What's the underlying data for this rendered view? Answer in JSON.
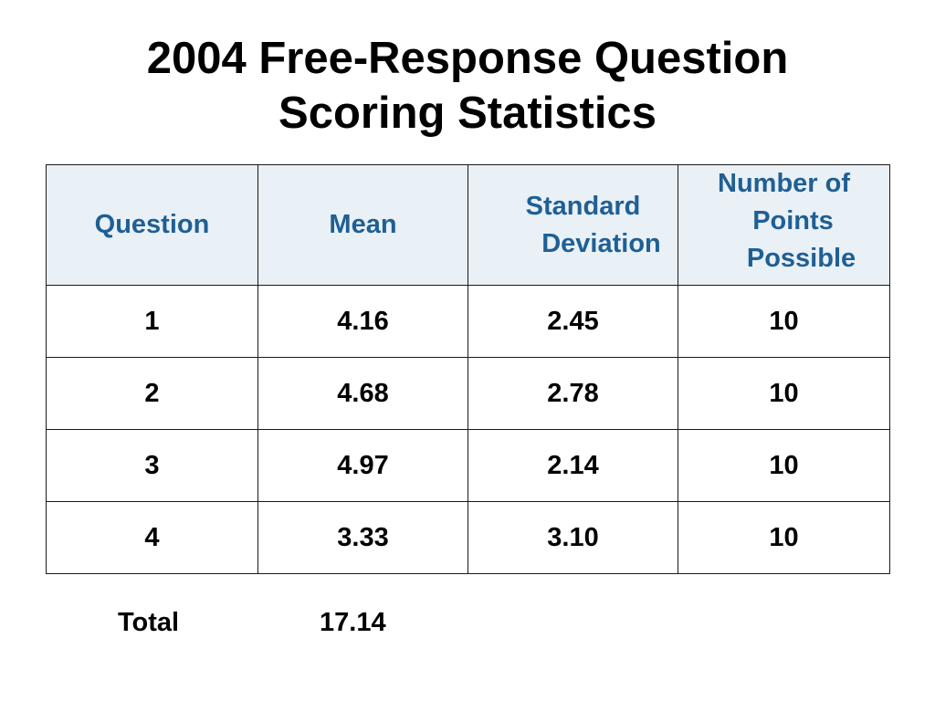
{
  "title": {
    "line1": "2004 Free-Response Question",
    "line2": "Scoring Statistics"
  },
  "table": {
    "headers": {
      "question": "Question",
      "mean": "Mean",
      "sd_line1": "Standard",
      "sd_line2": "Deviation",
      "points_line1": "Number of",
      "points_line2": "Points",
      "points_line3": "Possible"
    },
    "rows": [
      {
        "question": "1",
        "mean": "4.16",
        "sd": "2.45",
        "points": "10"
      },
      {
        "question": "2",
        "mean": "4.68",
        "sd": "2.78",
        "points": "10"
      },
      {
        "question": "3",
        "mean": "4.97",
        "sd": "2.14",
        "points": "10"
      },
      {
        "question": "4",
        "mean": "3.33",
        "sd": "3.10",
        "points": "10"
      }
    ]
  },
  "total": {
    "label": "Total",
    "value": "17.14"
  },
  "colors": {
    "header_text": "#1f5f94",
    "header_background": "#e9f0f6",
    "border": "#1a1a1a"
  }
}
